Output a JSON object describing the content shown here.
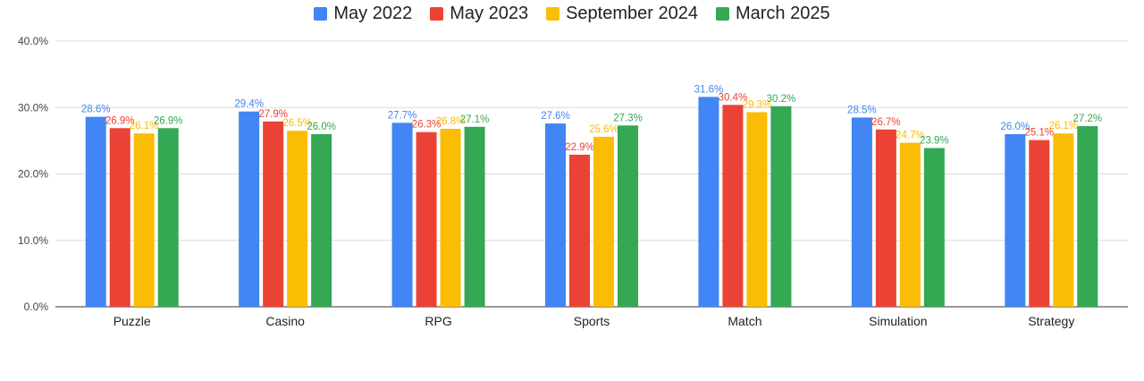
{
  "chart_data": {
    "type": "bar",
    "categories": [
      "Puzzle",
      "Casino",
      "RPG",
      "Sports",
      "Match",
      "Simulation",
      "Strategy"
    ],
    "series": [
      {
        "name": "May 2022",
        "color": "#4285F4",
        "values": [
          28.6,
          29.4,
          27.7,
          27.6,
          31.6,
          28.5,
          26.0
        ],
        "labels": [
          "28.6%",
          "29.4%",
          "27.7%",
          "27.6%",
          "31.6%",
          "28.5%",
          "26.0%"
        ]
      },
      {
        "name": "May 2023",
        "color": "#EA4335",
        "values": [
          26.9,
          27.9,
          26.3,
          22.9,
          30.4,
          26.7,
          25.1
        ],
        "labels": [
          "26.9%",
          "27.9%",
          "26.3%",
          "22.9%",
          "30.4%",
          "26.7%",
          "25.1%"
        ]
      },
      {
        "name": "September 2024",
        "color": "#FBBC04",
        "values": [
          26.1,
          26.5,
          26.8,
          25.6,
          29.3,
          24.7,
          26.1
        ],
        "labels": [
          "26.1%",
          "26.5%",
          "26.8%",
          "25.6%",
          "29.3%",
          "24.7%",
          "26.1%"
        ]
      },
      {
        "name": "March 2025",
        "color": "#34A853",
        "values": [
          26.9,
          26.0,
          27.1,
          27.3,
          30.2,
          23.9,
          27.2
        ],
        "labels": [
          "26.9%",
          "26.0%",
          "27.1%",
          "27.3%",
          "30.2%",
          "23.9%",
          "27.2%"
        ]
      }
    ],
    "y_ticks": [
      "0.0%",
      "10.0%",
      "20.0%",
      "30.0%",
      "40.0%"
    ],
    "y_tick_values": [
      0,
      10,
      20,
      30,
      40
    ],
    "ylim": [
      0,
      40
    ],
    "grid": true,
    "legend_position": "top-center",
    "title": "",
    "xlabel": "",
    "ylabel": ""
  }
}
